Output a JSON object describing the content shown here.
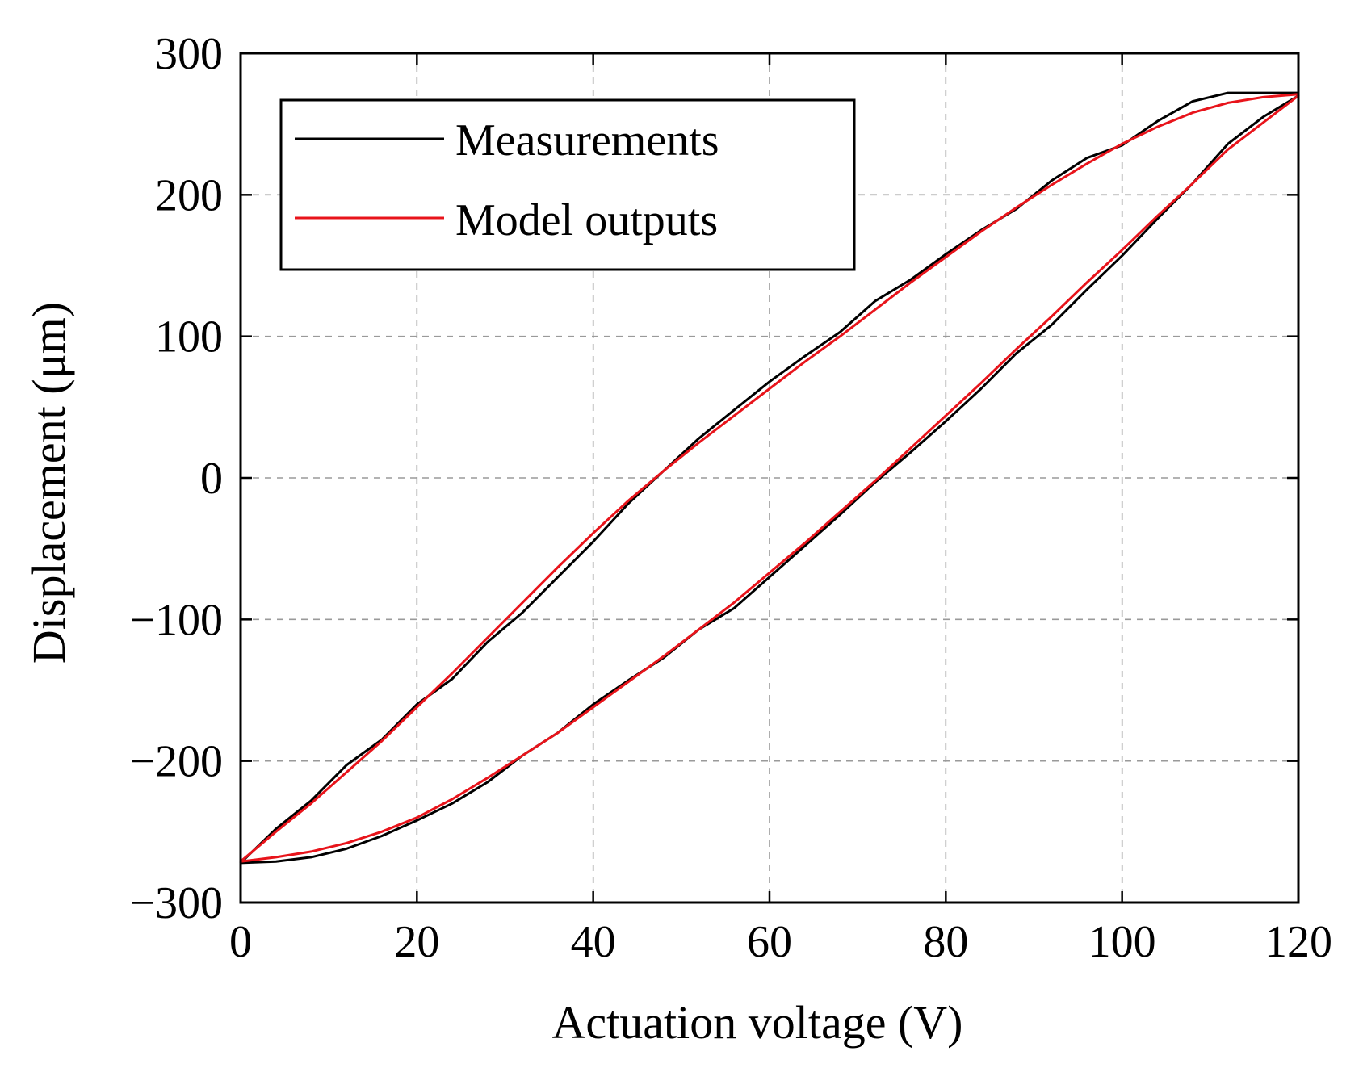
{
  "chart_data": {
    "type": "line",
    "title": "",
    "xlabel": "Actuation voltage (V)",
    "ylabel": "Displacement (μm)",
    "xlim": [
      0,
      120
    ],
    "ylim": [
      -300,
      300
    ],
    "x_ticks": [
      0,
      20,
      40,
      60,
      80,
      100,
      120
    ],
    "y_ticks": [
      -300,
      -200,
      -100,
      0,
      100,
      200,
      300
    ],
    "x_tick_labels": [
      "0",
      "20",
      "40",
      "60",
      "80",
      "100",
      "120"
    ],
    "y_tick_labels": [
      "−300",
      "−200",
      "−100",
      "0",
      "100",
      "200",
      "300"
    ],
    "grid": true,
    "legend": {
      "placement": "top-left",
      "entries": [
        "Measurements",
        "Model outputs"
      ]
    },
    "series": [
      {
        "name": "Measurements",
        "color": "#000000",
        "ascending": {
          "x": [
            0,
            4,
            8,
            12,
            16,
            20,
            24,
            28,
            32,
            36,
            40,
            44,
            48,
            52,
            56,
            60,
            64,
            68,
            72,
            76,
            80,
            84,
            88,
            92,
            96,
            100,
            104,
            108,
            112,
            116,
            120
          ],
          "y": [
            -272,
            -271,
            -268,
            -262,
            -253,
            -242,
            -230,
            -215,
            -196,
            -180,
            -160,
            -143,
            -127,
            -107,
            -92,
            -70,
            -48,
            -26,
            -3,
            18,
            40,
            63,
            88,
            108,
            133,
            157,
            183,
            208,
            236,
            255,
            270
          ]
        },
        "descending": {
          "x": [
            120,
            116,
            112,
            108,
            104,
            100,
            96,
            92,
            88,
            84,
            80,
            76,
            72,
            68,
            64,
            60,
            56,
            52,
            48,
            44,
            40,
            36,
            32,
            28,
            24,
            20,
            16,
            12,
            8,
            4,
            0
          ],
          "y": [
            272,
            272,
            272,
            266,
            252,
            235,
            226,
            210,
            190,
            175,
            158,
            140,
            125,
            103,
            86,
            68,
            48,
            28,
            5,
            -18,
            -45,
            -70,
            -95,
            -116,
            -142,
            -160,
            -185,
            -203,
            -228,
            -248,
            -272
          ]
        }
      },
      {
        "name": "Model outputs",
        "color": "#e8141b",
        "ascending": {
          "x": [
            0,
            4,
            8,
            12,
            16,
            20,
            24,
            28,
            32,
            36,
            40,
            44,
            48,
            52,
            56,
            60,
            64,
            68,
            72,
            76,
            80,
            84,
            88,
            92,
            96,
            100,
            104,
            108,
            112,
            116,
            120
          ],
          "y": [
            -271,
            -268,
            -264,
            -258,
            -250,
            -240,
            -227,
            -212,
            -196,
            -180,
            -162,
            -144,
            -126,
            -107,
            -88,
            -67,
            -46,
            -24,
            -2,
            21,
            44,
            67,
            91,
            114,
            138,
            161,
            185,
            208,
            232,
            251,
            270
          ]
        },
        "descending": {
          "x": [
            120,
            116,
            112,
            108,
            104,
            100,
            96,
            92,
            88,
            84,
            80,
            76,
            72,
            68,
            64,
            60,
            56,
            52,
            48,
            44,
            40,
            36,
            32,
            28,
            24,
            20,
            16,
            12,
            8,
            4,
            0
          ],
          "y": [
            271,
            269,
            265,
            258,
            248,
            236,
            222,
            207,
            191,
            174,
            156,
            138,
            119,
            100,
            82,
            63,
            44,
            25,
            5,
            -16,
            -39,
            -63,
            -88,
            -113,
            -138,
            -162,
            -186,
            -208,
            -230,
            -250,
            -271
          ]
        }
      }
    ]
  }
}
